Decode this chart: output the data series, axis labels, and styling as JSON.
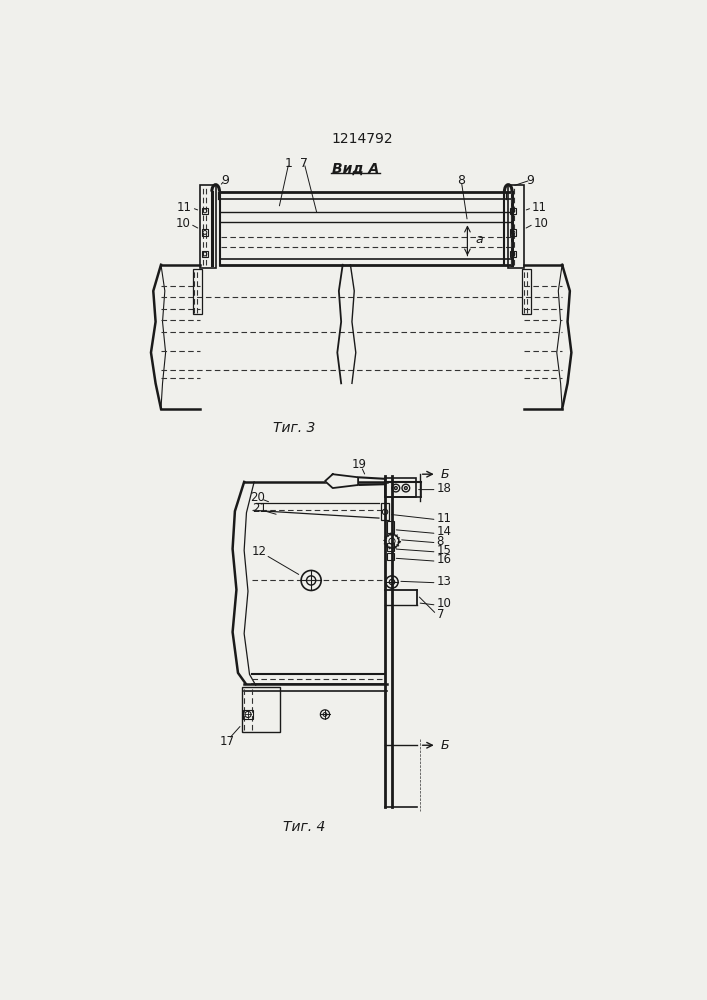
{
  "title": "1214792",
  "fig3_label": "Τиг. 3",
  "fig4_label": "Τиг. 4",
  "view_label": "Вид A",
  "bg_color": "#f0f0ec",
  "line_color": "#1a1a1a",
  "dash_color": "#333333"
}
